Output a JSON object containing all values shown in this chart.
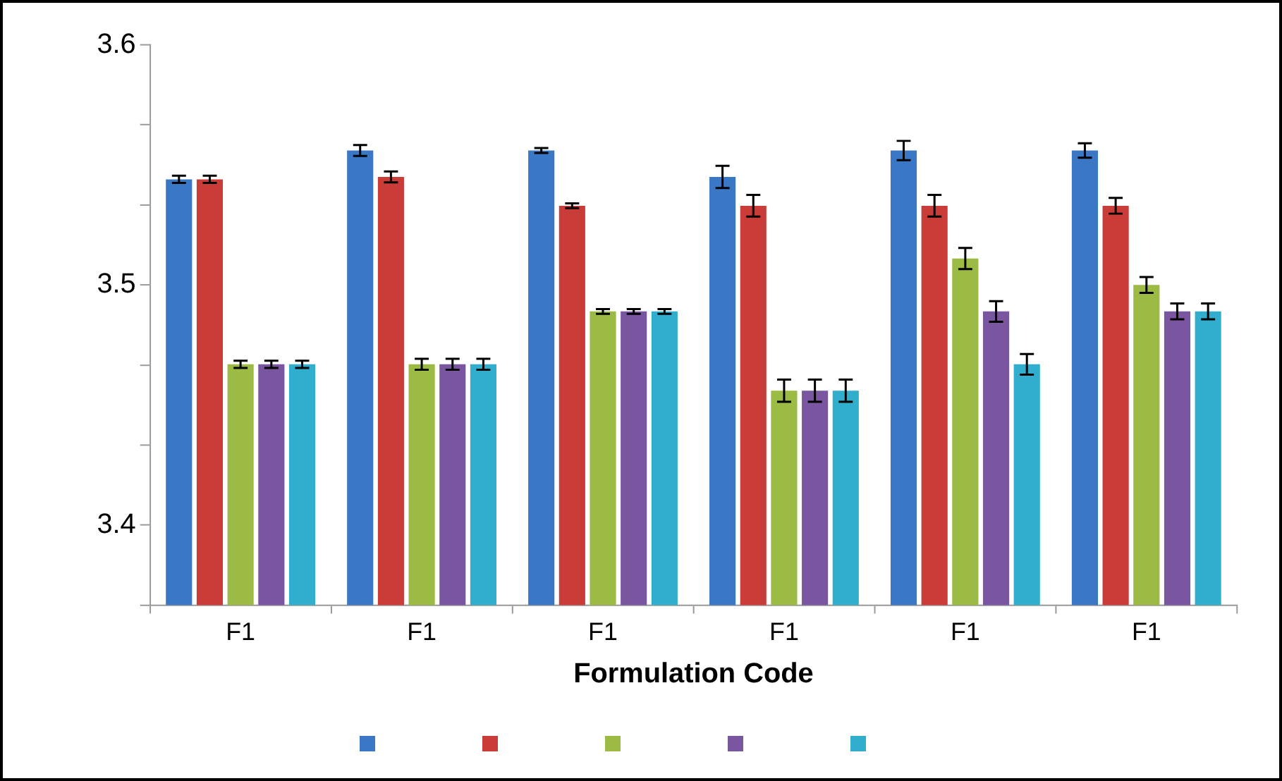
{
  "chart_data": {
    "type": "bar",
    "xlabel": "Formulation Code",
    "categories": [
      "F1",
      "F1",
      "F1",
      "F1",
      "F1",
      "F1"
    ],
    "series": [
      {
        "color": "#3a78c6",
        "values": [
          3.544,
          3.556,
          3.556,
          3.545,
          3.556,
          3.556
        ],
        "errors": [
          0.0015,
          0.0023,
          0.001,
          0.0046,
          0.004,
          0.003
        ]
      },
      {
        "color": "#c93c37",
        "values": [
          3.544,
          3.545,
          3.533,
          3.533,
          3.533,
          3.533
        ],
        "errors": [
          0.0015,
          0.0023,
          0.001,
          0.0045,
          0.0045,
          0.0033
        ]
      },
      {
        "color": "#9bbb45",
        "values": [
          3.467,
          3.467,
          3.489,
          3.456,
          3.511,
          3.5
        ],
        "errors": [
          0.0015,
          0.0023,
          0.001,
          0.0046,
          0.0044,
          0.0033
        ]
      },
      {
        "color": "#7b56a0",
        "values": [
          3.467,
          3.467,
          3.489,
          3.456,
          3.489,
          3.489
        ],
        "errors": [
          0.0015,
          0.0023,
          0.001,
          0.0046,
          0.0043,
          0.0033
        ]
      },
      {
        "color": "#31aece",
        "values": [
          3.467,
          3.467,
          3.489,
          3.456,
          3.467,
          3.489
        ],
        "errors": [
          0.0015,
          0.0023,
          0.001,
          0.0046,
          0.0043,
          0.0033
        ]
      }
    ],
    "ylim": [
      3.3667,
      3.6
    ],
    "yticks": [
      {
        "value": 3.3667,
        "label": null
      },
      3.4,
      {
        "value": 3.4333,
        "label": null
      },
      {
        "value": 3.4667,
        "label": null
      },
      3.5,
      {
        "value": 3.5333,
        "label": null
      },
      {
        "value": 3.5667,
        "label": null
      },
      3.6
    ],
    "grid": false
  }
}
